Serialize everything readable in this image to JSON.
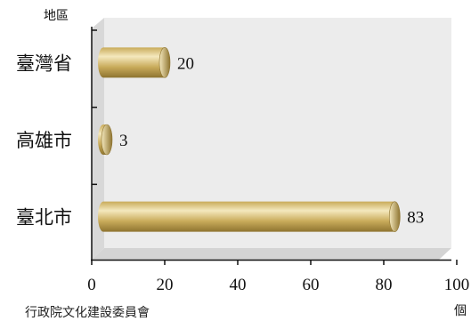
{
  "chart_data": {
    "type": "bar",
    "orientation": "horizontal",
    "categories": [
      "臺灣省",
      "高雄市",
      "臺北市"
    ],
    "values": [
      20,
      3,
      83
    ],
    "xlabel": "個",
    "ylabel": "地區",
    "xlim": [
      0,
      100
    ],
    "xticks": [
      0,
      20,
      40,
      60,
      80,
      100
    ],
    "grid": false,
    "legend": "none",
    "source": "行政院文化建設委員會",
    "colors": {
      "bar_mid": "#c9ab5a",
      "bar_light": "#f4e8bd",
      "bar_dark": "#8e7430",
      "plot_background": "#ececec",
      "floor": "#d4d4d4"
    }
  }
}
